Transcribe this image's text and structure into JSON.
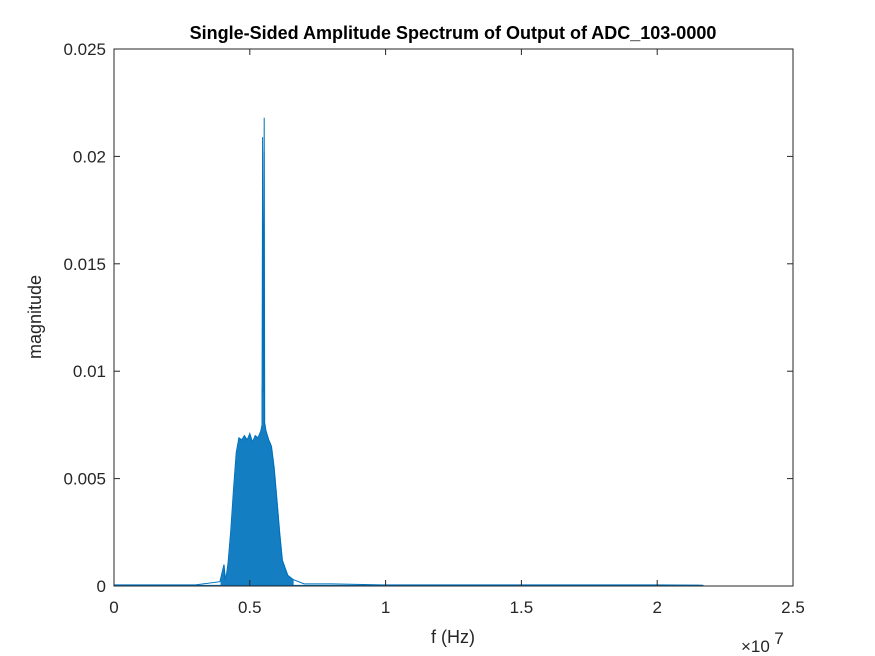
{
  "chart_data": {
    "type": "line",
    "title": "Single-Sided Amplitude Spectrum of Output of ADC_103-0000",
    "xlabel": "f (Hz)",
    "ylabel": "magnitude",
    "x_exponent": {
      "base": "×10",
      "power": "7"
    },
    "xlim": [
      0,
      2.5
    ],
    "ylim": [
      0,
      0.025
    ],
    "x_ticks": [
      0,
      0.5,
      1,
      1.5,
      2,
      2.5
    ],
    "x_tick_labels": [
      "0",
      "0.5",
      "1",
      "1.5",
      "2",
      "2.5"
    ],
    "y_ticks": [
      0,
      0.005,
      0.01,
      0.015,
      0.02,
      0.025
    ],
    "y_tick_labels": [
      "0",
      "0.005",
      "0.01",
      "0.015",
      "0.02",
      "0.025"
    ],
    "grid": false,
    "line_color": "#0072bd",
    "series": [
      {
        "x": [
          0,
          0.3,
          0.39,
          0.405,
          0.41,
          0.415,
          0.42,
          0.43,
          0.44,
          0.45,
          0.46,
          0.47,
          0.48,
          0.49,
          0.5,
          0.51,
          0.52,
          0.53,
          0.54,
          0.545,
          0.547,
          0.55,
          0.553,
          0.555,
          0.56,
          0.57,
          0.58,
          0.59,
          0.6,
          0.61,
          0.62,
          0.64,
          0.66,
          0.7,
          0.8,
          1.0,
          1.5,
          2.0,
          2.15,
          2.17
        ],
        "y": [
          5e-05,
          5e-05,
          0.0002,
          0.001,
          0.0003,
          0.0006,
          0.0011,
          0.0026,
          0.0045,
          0.0062,
          0.0069,
          0.0068,
          0.007,
          0.0068,
          0.0071,
          0.0067,
          0.007,
          0.0069,
          0.0072,
          0.0075,
          0.0209,
          0.009,
          0.0218,
          0.0076,
          0.0072,
          0.0068,
          0.0065,
          0.0055,
          0.004,
          0.0025,
          0.0012,
          0.0005,
          0.0003,
          0.0001,
          0.0001,
          5e-05,
          5e-05,
          5e-05,
          4e-05,
          3e-05
        ]
      }
    ]
  }
}
